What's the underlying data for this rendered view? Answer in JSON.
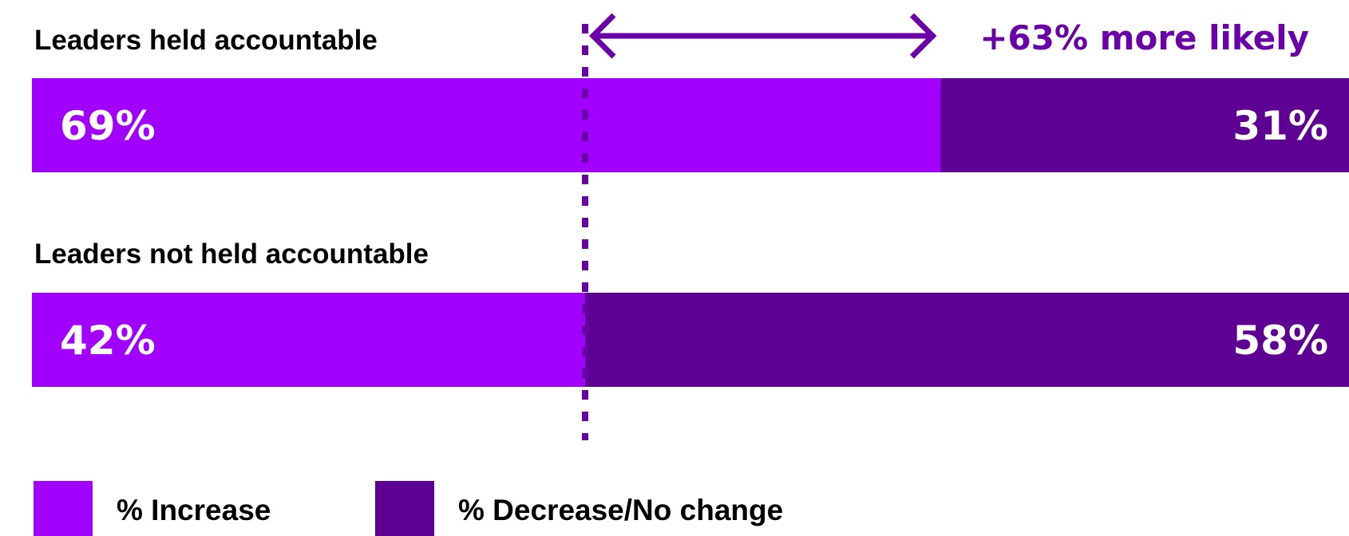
{
  "chart_data": {
    "type": "bar",
    "orientation": "horizontal",
    "stacked": true,
    "categories": [
      "Leaders held accountable",
      "Leaders not held accountable"
    ],
    "series": [
      {
        "name": "% Increase",
        "values": [
          69,
          42
        ],
        "labels": [
          "69%",
          "42%"
        ],
        "color": "#A100FF"
      },
      {
        "name": "% Decrease/No change",
        "values": [
          31,
          58
        ],
        "labels": [
          "31%",
          "58%"
        ],
        "color": "#5F0095"
      }
    ],
    "xlim": [
      0,
      100
    ],
    "reference_line": {
      "x": 42,
      "style": "dashed"
    },
    "annotation": {
      "text": "+63% more likely",
      "from": 42,
      "to": 69,
      "color": "#6A00A8"
    },
    "legend": {
      "placement": "bottom-left"
    },
    "grid": false
  }
}
